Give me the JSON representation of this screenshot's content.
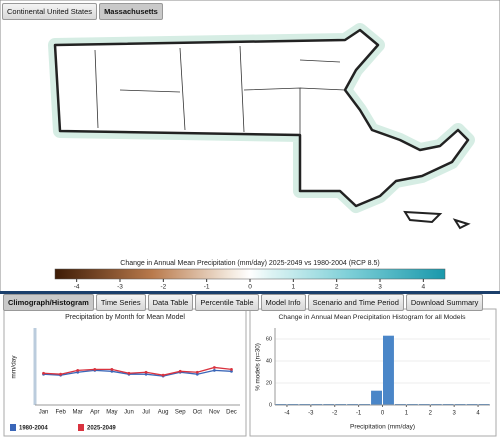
{
  "tabs": [
    "Continental United States",
    "Massachusetts"
  ],
  "colorbar": {
    "title": "Change in Annual Mean Precipitation (mm/day) 2025-2049 vs 1980-2004 (RCP 8.5)",
    "xlim": [
      -4.5,
      4.5
    ],
    "xticks": [
      -4,
      -3,
      -2,
      -1,
      0,
      1,
      2,
      3,
      4
    ]
  },
  "panel_tabs": [
    "Climograph/Histogram",
    "Time Series",
    "Data Table",
    "Percentile Table",
    "Model Info",
    "Scenario and Time Period",
    "Download Summary"
  ],
  "chart_data": [
    {
      "type": "line",
      "title": "Precipitation by Month for Mean Model",
      "ylabel": "mm/day",
      "categories": [
        "Jan",
        "Feb",
        "Mar",
        "Apr",
        "May",
        "Jun",
        "Jul",
        "Aug",
        "Sep",
        "Oct",
        "Nov",
        "Dec"
      ],
      "series": [
        {
          "name": "1980-2004",
          "color": "#3a66b8",
          "values": [
            3.2,
            3.1,
            3.4,
            3.6,
            3.5,
            3.2,
            3.2,
            3.0,
            3.4,
            3.2,
            3.6,
            3.5
          ]
        },
        {
          "name": "2025-2049",
          "color": "#d9333f",
          "values": [
            3.3,
            3.2,
            3.6,
            3.7,
            3.7,
            3.3,
            3.4,
            3.1,
            3.5,
            3.4,
            3.9,
            3.7
          ]
        }
      ],
      "ylim": [
        0,
        8
      ]
    },
    {
      "type": "histogram",
      "title": "Change in Annual Mean Precipitation Histogram for all Models",
      "xlabel": "Precipitation (mm/day)",
      "ylabel": "% models (n=30)",
      "color": "#4a86c8",
      "bins": [
        -4.5,
        -4,
        -3.5,
        -3,
        -2.5,
        -2,
        -1.5,
        -1,
        -0.5,
        0,
        0.5,
        1,
        1.5,
        2,
        2.5,
        3,
        3.5,
        4,
        4.5
      ],
      "values": [
        0,
        0,
        0,
        0,
        0,
        0,
        0,
        0,
        13,
        63,
        0,
        0,
        0,
        0,
        0,
        0,
        0,
        0
      ],
      "xlim": [
        -4.5,
        4.5
      ],
      "xticks": [
        -4,
        -3,
        -2,
        -1,
        0,
        1,
        2,
        3,
        4
      ],
      "ylim": [
        0,
        70
      ],
      "yticks": [
        0,
        20,
        40,
        60
      ]
    }
  ]
}
